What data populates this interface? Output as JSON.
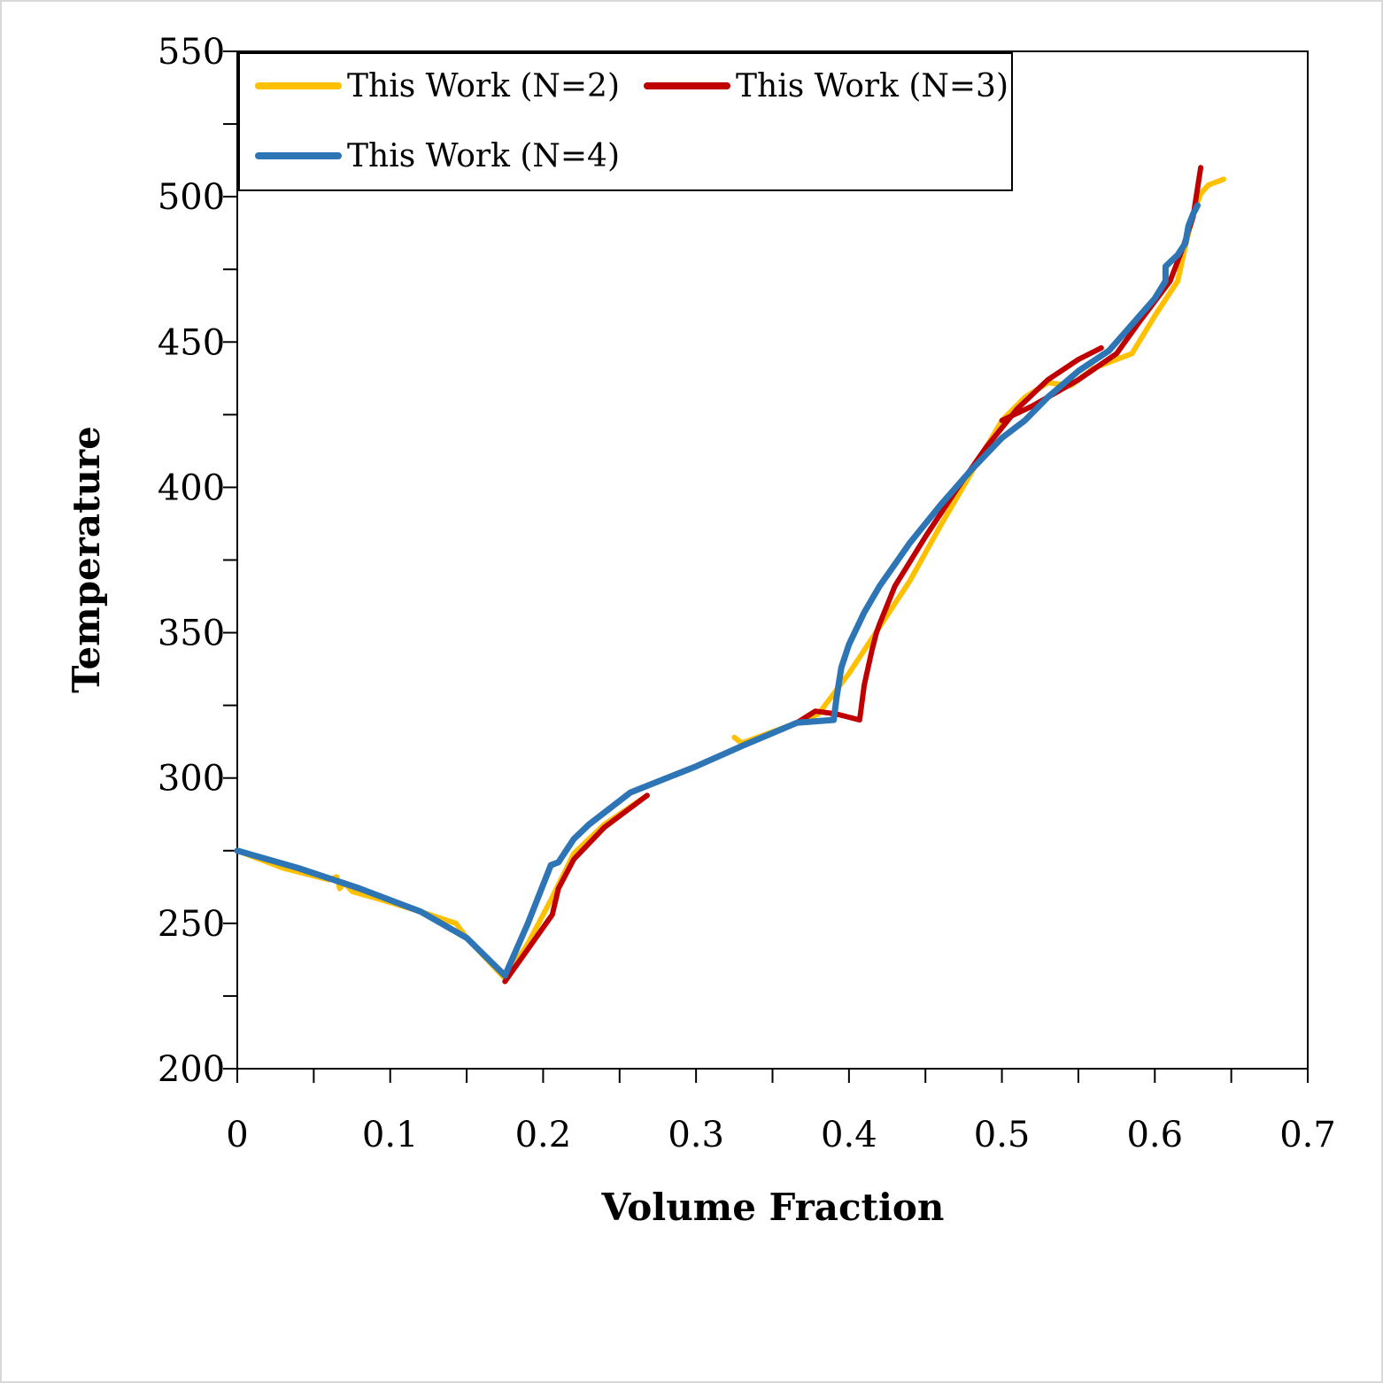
{
  "chart_data": {
    "type": "line",
    "title": "",
    "xlabel": "Volume Fraction",
    "ylabel": "Temperature",
    "xlim": [
      0,
      0.7
    ],
    "ylim": [
      200,
      550
    ],
    "x_ticks": [
      "0",
      "0.1",
      "0.2",
      "0.3",
      "0.4",
      "0.5",
      "0.6",
      "0.7"
    ],
    "y_ticks": [
      "200",
      "250",
      "300",
      "350",
      "400",
      "450",
      "500",
      "550"
    ],
    "grid": false,
    "legend_position": "top-left",
    "series": [
      {
        "name": "This Work (N=2)",
        "color": "#FFC000",
        "points": [
          [
            0,
            275
          ],
          [
            0.03,
            269
          ],
          [
            0.06,
            265
          ],
          [
            0.065,
            266
          ],
          [
            0.067,
            262
          ],
          [
            0.07,
            264
          ],
          [
            0.075,
            261
          ],
          [
            0.095,
            258
          ],
          [
            0.12,
            254
          ],
          [
            0.143,
            250
          ],
          [
            0.15,
            245
          ],
          [
            0.175,
            231
          ],
          [
            0.19,
            243
          ],
          [
            0.205,
            258
          ],
          [
            0.22,
            274
          ],
          [
            0.24,
            284
          ],
          [
            0.268,
            294
          ]
        ]
      },
      {
        "name": "This Work (N=3)",
        "color": "#C00000",
        "points": [
          [
            0.175,
            230
          ],
          [
            0.206,
            253
          ],
          [
            0.21,
            262
          ],
          [
            0.22,
            272
          ],
          [
            0.24,
            283
          ],
          [
            0.268,
            294
          ]
        ]
      },
      {
        "name": "This Work (N=4)",
        "color": "#2E75B6",
        "points": [
          [
            0,
            275
          ],
          [
            0.04,
            269
          ],
          [
            0.08,
            262
          ],
          [
            0.12,
            254
          ],
          [
            0.15,
            245
          ],
          [
            0.175,
            232
          ],
          [
            0.19,
            250
          ],
          [
            0.205,
            270
          ],
          [
            0.21,
            271
          ],
          [
            0.22,
            279
          ],
          [
            0.23,
            284
          ],
          [
            0.257,
            295
          ],
          [
            0.3,
            304
          ],
          [
            0.33,
            311
          ],
          [
            0.366,
            319
          ],
          [
            0.39,
            320
          ]
        ]
      },
      {
        "name": "This Work (N=2)",
        "color": "#FFC000",
        "points": [
          [
            0.325,
            314
          ],
          [
            0.33,
            312
          ],
          [
            0.366,
            319
          ],
          [
            0.38,
            322
          ],
          [
            0.4,
            336
          ],
          [
            0.42,
            352
          ],
          [
            0.44,
            368
          ],
          [
            0.46,
            387
          ],
          [
            0.48,
            405
          ],
          [
            0.5,
            423
          ],
          [
            0.515,
            431
          ],
          [
            0.53,
            436
          ],
          [
            0.545,
            435
          ],
          [
            0.56,
            441
          ],
          [
            0.575,
            444
          ],
          [
            0.585,
            446
          ],
          [
            0.6,
            459
          ],
          [
            0.615,
            471
          ],
          [
            0.62,
            483
          ],
          [
            0.625,
            494
          ],
          [
            0.63,
            501
          ],
          [
            0.635,
            504
          ],
          [
            0.645,
            506
          ]
        ]
      },
      {
        "name": "This Work (N=3)",
        "color": "#C00000",
        "points": [
          [
            0.366,
            319
          ],
          [
            0.378,
            323
          ],
          [
            0.392,
            322
          ],
          [
            0.407,
            320
          ],
          [
            0.41,
            332
          ],
          [
            0.415,
            344
          ],
          [
            0.418,
            350
          ],
          [
            0.42,
            353
          ],
          [
            0.43,
            366
          ],
          [
            0.45,
            383
          ],
          [
            0.47,
            399
          ],
          [
            0.49,
            414
          ],
          [
            0.51,
            427
          ],
          [
            0.53,
            437
          ],
          [
            0.55,
            444
          ],
          [
            0.565,
            448
          ]
        ]
      },
      {
        "name": "This Work (N=3)",
        "color": "#C00000",
        "points": [
          [
            0.5,
            423
          ],
          [
            0.52,
            428
          ],
          [
            0.55,
            437
          ],
          [
            0.575,
            446
          ],
          [
            0.59,
            457
          ],
          [
            0.61,
            471
          ],
          [
            0.618,
            482
          ],
          [
            0.625,
            493
          ],
          [
            0.63,
            510
          ]
        ]
      },
      {
        "name": "This Work (N=4)",
        "color": "#2E75B6",
        "points": [
          [
            0.39,
            320
          ],
          [
            0.392,
            328
          ],
          [
            0.395,
            338
          ],
          [
            0.4,
            346
          ],
          [
            0.41,
            357
          ],
          [
            0.42,
            366
          ],
          [
            0.44,
            381
          ],
          [
            0.46,
            394
          ],
          [
            0.48,
            406
          ],
          [
            0.5,
            417
          ],
          [
            0.51,
            421
          ],
          [
            0.515,
            423
          ],
          [
            0.53,
            431
          ],
          [
            0.55,
            440
          ],
          [
            0.57,
            447
          ],
          [
            0.585,
            456
          ],
          [
            0.6,
            465
          ],
          [
            0.607,
            471
          ],
          [
            0.607,
            476
          ],
          [
            0.615,
            480
          ],
          [
            0.62,
            484
          ],
          [
            0.622,
            490
          ],
          [
            0.625,
            494
          ],
          [
            0.628,
            497
          ]
        ]
      }
    ]
  }
}
